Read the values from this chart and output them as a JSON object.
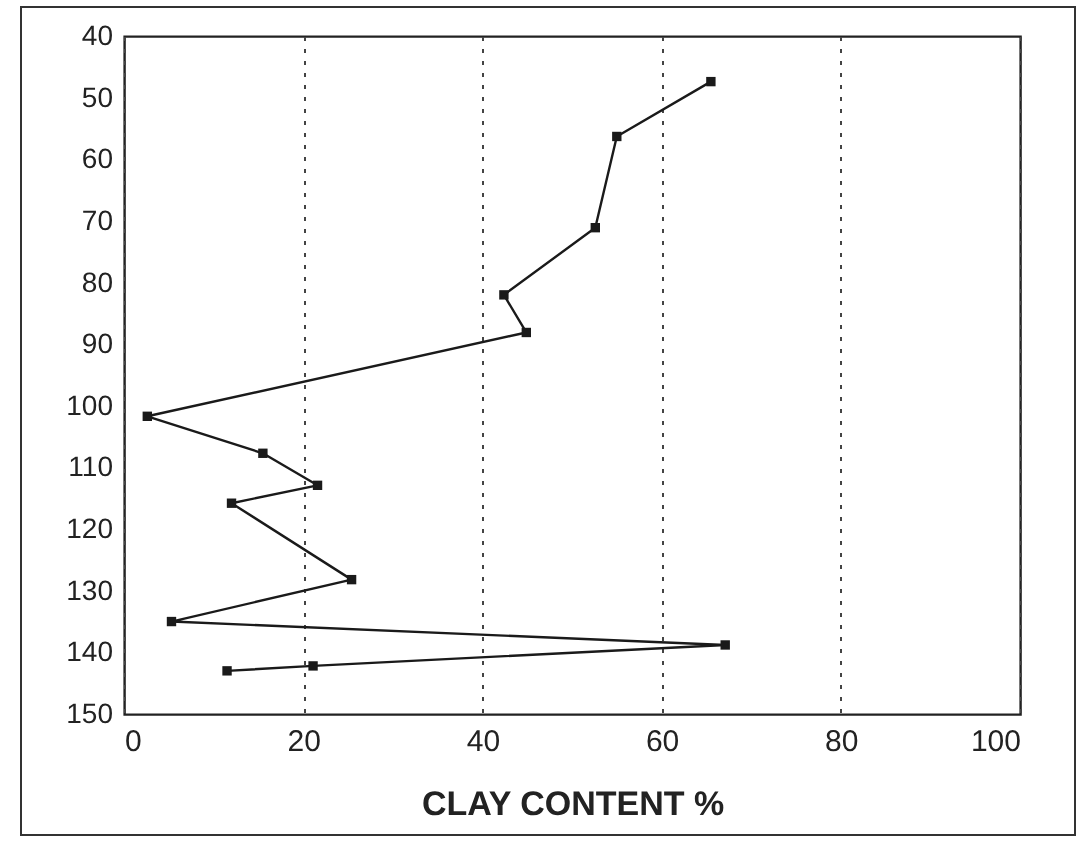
{
  "chart_data": {
    "type": "line",
    "xlabel": "CLAY CONTENT %",
    "series": [
      {
        "color": "#1a1a1a",
        "x": [
          65.5,
          55,
          52.6,
          42.4,
          44.9,
          2.6,
          15.5,
          21.6,
          12,
          25.4,
          5.3,
          67.1,
          21.1,
          11.5
        ],
        "values": [
          47.4,
          56.3,
          71.1,
          82,
          88.1,
          101.7,
          107.7,
          112.9,
          115.8,
          128.2,
          135,
          138.8,
          142.2,
          143
        ]
      }
    ],
    "xlim": [
      0,
      100
    ],
    "xticks": [
      0,
      20,
      40,
      60,
      80,
      100
    ],
    "ylim": [
      150,
      40
    ],
    "yticks": [
      40,
      50,
      60,
      70,
      80,
      90,
      100,
      110,
      120,
      130,
      140,
      150
    ],
    "grid": "x",
    "marker": "square",
    "line_style": "solid"
  }
}
